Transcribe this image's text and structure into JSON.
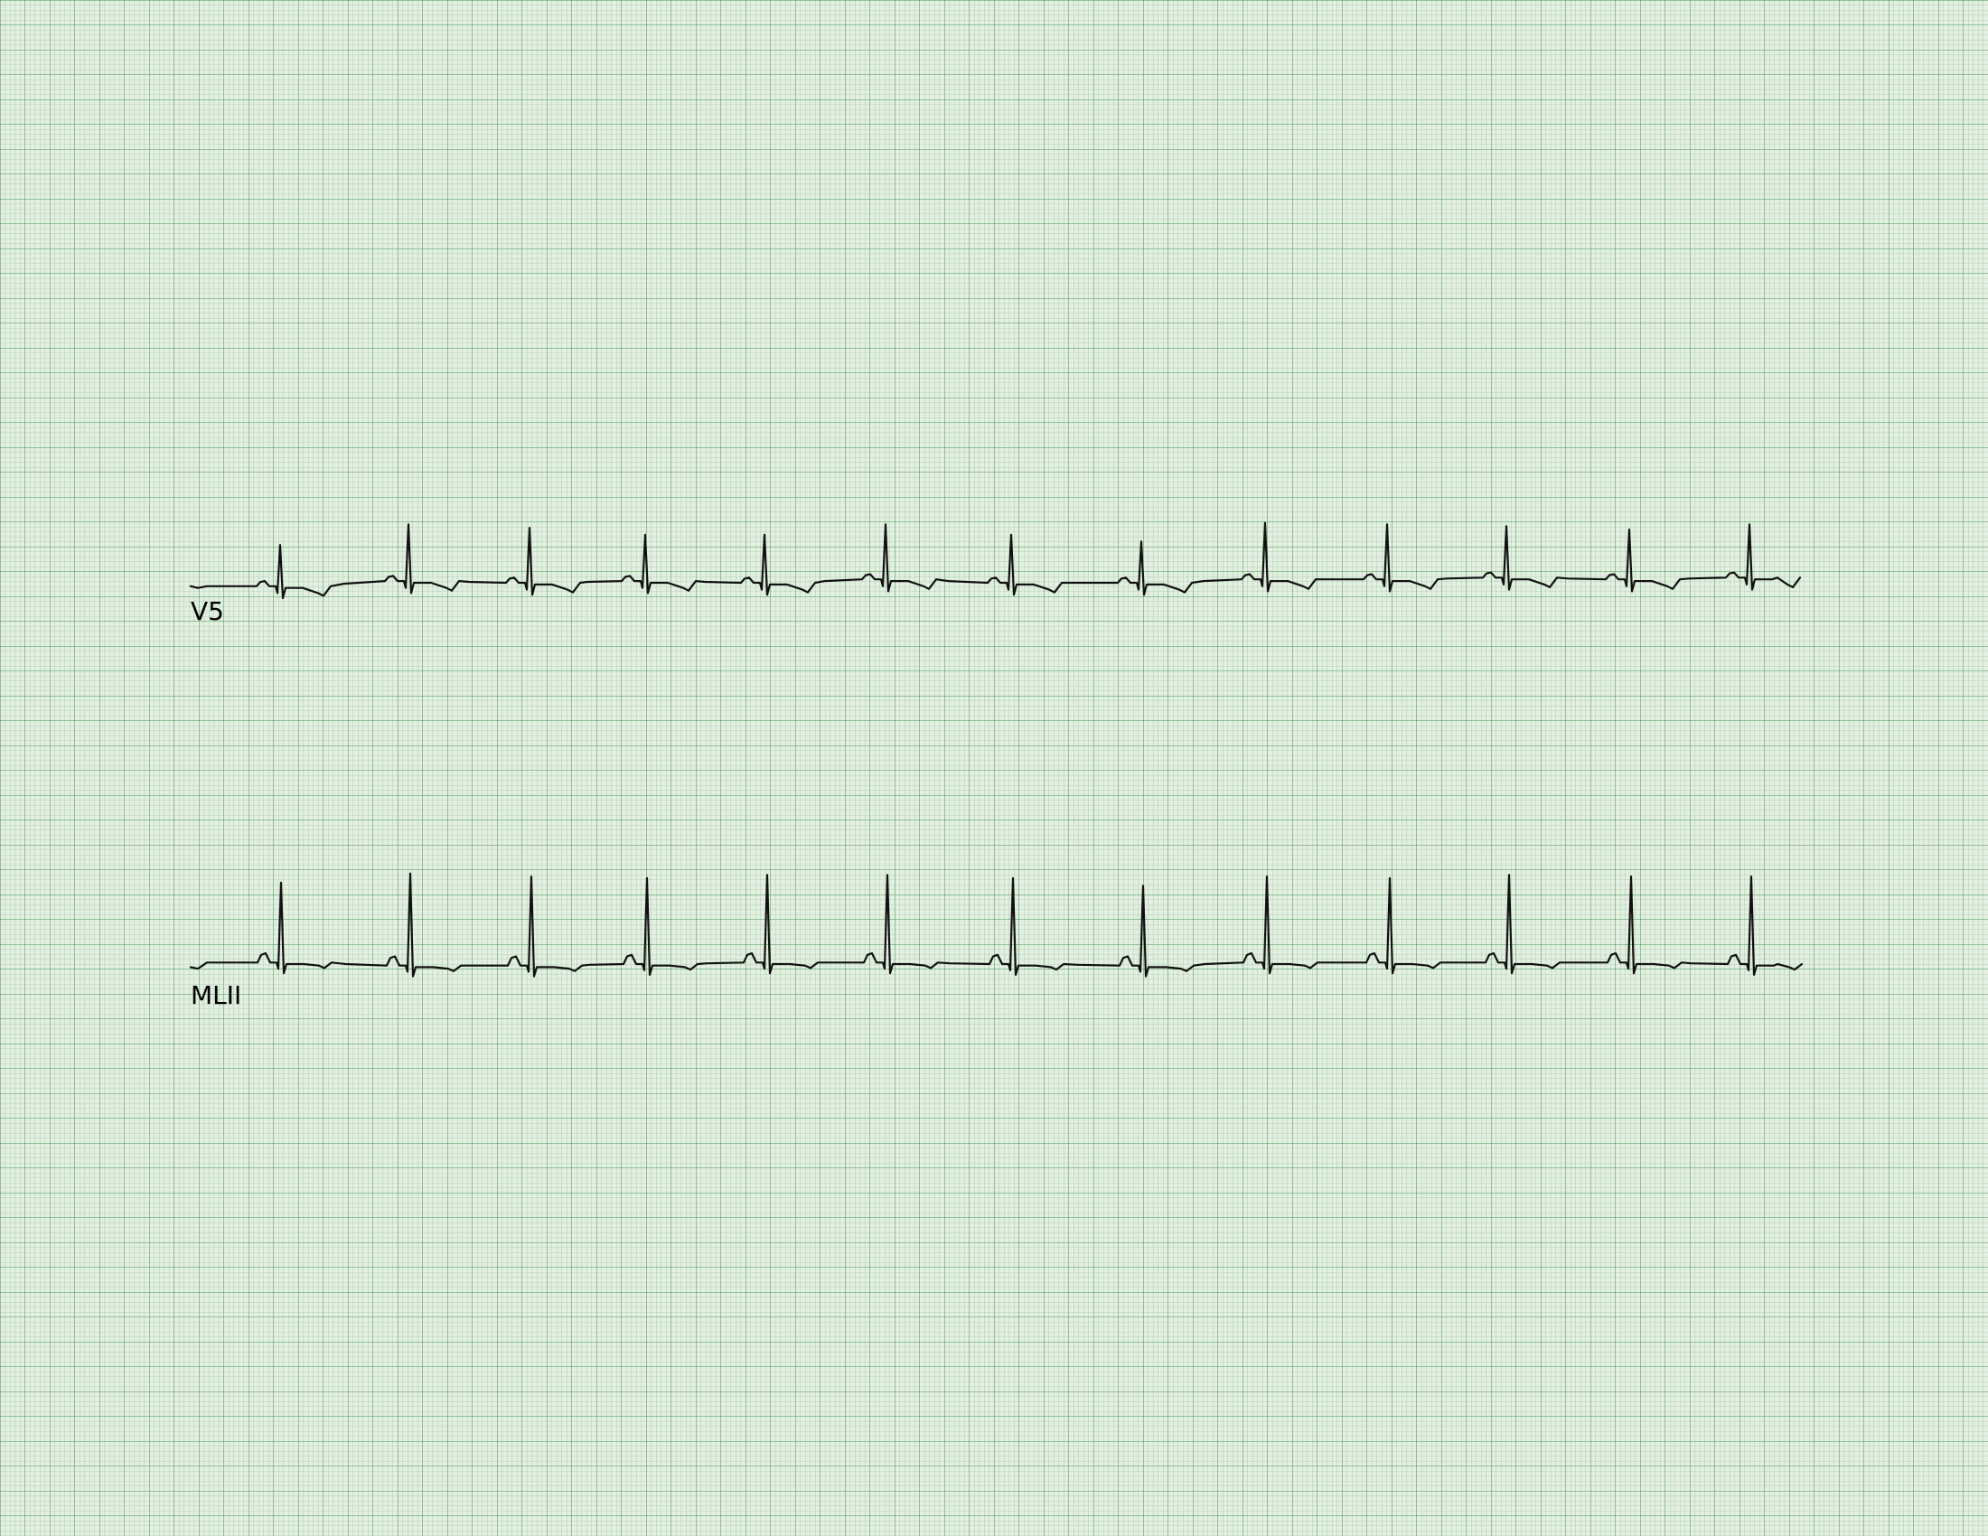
{
  "chart_data": {
    "type": "line",
    "title": "",
    "xlabel": "",
    "ylabel": "",
    "grid": true,
    "grid_color": "#2f8a3a",
    "background": "#e3efe1",
    "trace_color": "#111111",
    "series": [
      {
        "name": "V5",
        "baseline": 0,
        "r_peak_x": [
          310,
          452,
          586,
          714,
          846,
          980,
          1119,
          1263,
          1400,
          1535,
          1667,
          1803,
          1936
        ],
        "r_peak_y": [
          1.2,
          1.65,
          1.6,
          1.35,
          1.4,
          1.6,
          1.4,
          1.2,
          1.65,
          1.6,
          1.5,
          1.45,
          1.55
        ],
        "baseline_drift": [
          -0.1,
          0.05,
          0.0,
          0.05,
          0.0,
          0.1,
          0.0,
          0.0,
          0.1,
          0.1,
          0.15,
          0.1,
          0.15
        ]
      },
      {
        "name": "MLII",
        "baseline": 0,
        "r_peak_x": [
          311,
          454,
          588,
          716,
          849,
          982,
          1121,
          1265,
          1402,
          1538,
          1670,
          1805,
          1938
        ],
        "r_peak_y": [
          2.6,
          3.0,
          2.9,
          2.8,
          2.85,
          2.85,
          2.8,
          2.6,
          2.8,
          2.75,
          2.85,
          2.8,
          2.85
        ],
        "baseline_drift": [
          0.05,
          -0.05,
          -0.05,
          0.0,
          0.05,
          0.05,
          0.0,
          -0.05,
          0.05,
          0.05,
          0.05,
          0.05,
          0.0
        ]
      }
    ]
  }
}
